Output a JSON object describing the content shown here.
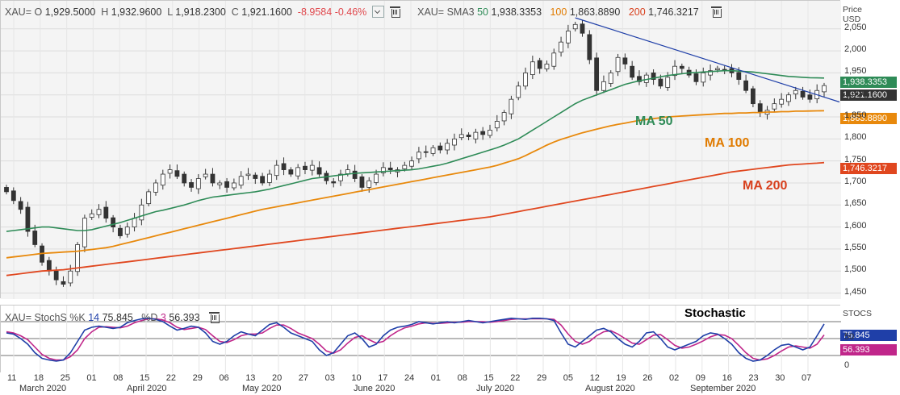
{
  "header": {
    "symbol": "XAU=",
    "open_label": "O",
    "open": "1,929.5000",
    "high_label": "H",
    "high": "1,932.9600",
    "low_label": "L",
    "low": "1,918.2300",
    "close_label": "C",
    "close": "1,921.1600",
    "change": "-8.9584",
    "change_pct": "-0.46%",
    "sma_label": "XAU= SMA3",
    "sma50_period": "50",
    "sma50_value": "1,938.3353",
    "sma100_period": "100",
    "sma100_value": "1,863.8890",
    "sma200_period": "200",
    "sma200_value": "1,746.3217"
  },
  "stoch_header": {
    "label": "XAU= StochS %K",
    "k_period": "14",
    "k_value": "75.845",
    "d_label": "%D",
    "d_period": "3",
    "d_value": "56.393"
  },
  "price_axis_title": [
    "Price",
    "USD"
  ],
  "stoch_axis_title": "STOCS",
  "annotations": {
    "ma50": "MA 50",
    "ma100": "MA 100",
    "ma200": "MA 200",
    "stochastic": "Stochastic"
  },
  "price_tags": {
    "ma50": "1,938.3353",
    "close": "1,921.1600",
    "ma100": "1,863.8890",
    "ma200": "1,746.3217",
    "k": "75.845",
    "d": "56.393"
  },
  "colors": {
    "ma50": "#2e8b57",
    "ma100": "#e8890c",
    "ma200": "#e0471f",
    "k_line": "#1f3fa8",
    "d_line": "#c0268a",
    "trendline": "#1f3fa8",
    "close_tag": "#333333"
  },
  "chart_data": {
    "type": "candlestick",
    "y_ticks": [
      "1,450",
      "1,500",
      "1,550",
      "1,600",
      "1,650",
      "1,700",
      "1,750",
      "1,800",
      "1,850",
      "1,900",
      "1,950",
      "2,000",
      "2,050"
    ],
    "y_tick_values": [
      1450,
      1500,
      1550,
      1600,
      1650,
      1700,
      1750,
      1800,
      1850,
      1900,
      1950,
      2000,
      2050
    ],
    "ylim": [
      1440,
      2110
    ],
    "x_ticks": [
      "11",
      "18",
      "25",
      "01",
      "08",
      "15",
      "22",
      "29",
      "06",
      "13",
      "20",
      "27",
      "03",
      "10",
      "17",
      "24",
      "01",
      "08",
      "15",
      "22",
      "29",
      "05",
      "12",
      "19",
      "26",
      "02",
      "09",
      "16",
      "23",
      "30",
      "07"
    ],
    "months": [
      "March 2020",
      "April 2020",
      "May 2020",
      "June 2020",
      "July 2020",
      "August 2020",
      "September 2020"
    ],
    "close_series": [
      1680,
      1660,
      1640,
      1590,
      1560,
      1520,
      1500,
      1480,
      1470,
      1500,
      1560,
      1620,
      1630,
      1640,
      1620,
      1600,
      1580,
      1600,
      1620,
      1650,
      1680,
      1700,
      1720,
      1730,
      1715,
      1700,
      1690,
      1710,
      1720,
      1700,
      1700,
      1690,
      1700,
      1715,
      1720,
      1710,
      1700,
      1720,
      1740,
      1730,
      1720,
      1735,
      1730,
      1740,
      1720,
      1705,
      1700,
      1720,
      1730,
      1710,
      1690,
      1705,
      1720,
      1735,
      1730,
      1730,
      1740,
      1750,
      1770,
      1770,
      1780,
      1775,
      1790,
      1800,
      1810,
      1805,
      1815,
      1810,
      1820,
      1840,
      1860,
      1890,
      1920,
      1950,
      1975,
      1960,
      1970,
      1995,
      2020,
      2045,
      2060,
      2040,
      1980,
      1910,
      1930,
      1950,
      1985,
      1970,
      1940,
      1930,
      1945,
      1935,
      1920,
      1940,
      1965,
      1960,
      1945,
      1930,
      1950,
      1955,
      1960,
      1955,
      1950,
      1935,
      1910,
      1880,
      1860,
      1865,
      1880,
      1890,
      1900,
      1910,
      1895,
      1890,
      1910,
      1921.16
    ],
    "ma50": [
      1590,
      1592,
      1594,
      1596,
      1598,
      1600,
      1600,
      1598,
      1596,
      1594,
      1592,
      1592,
      1594,
      1598,
      1602,
      1606,
      1610,
      1615,
      1620,
      1625,
      1630,
      1635,
      1638,
      1642,
      1646,
      1650,
      1655,
      1660,
      1664,
      1668,
      1670,
      1672,
      1674,
      1676,
      1678,
      1680,
      1683,
      1686,
      1690,
      1694,
      1698,
      1702,
      1706,
      1710,
      1712,
      1714,
      1716,
      1718,
      1720,
      1722,
      1723,
      1724,
      1725,
      1726,
      1727,
      1728,
      1729,
      1730,
      1732,
      1735,
      1738,
      1741,
      1745,
      1750,
      1755,
      1760,
      1765,
      1770,
      1775,
      1780,
      1786,
      1793,
      1800,
      1810,
      1820,
      1830,
      1840,
      1850,
      1860,
      1870,
      1880,
      1888,
      1894,
      1900,
      1906,
      1912,
      1918,
      1924,
      1928,
      1932,
      1935,
      1938,
      1941,
      1944,
      1946,
      1948,
      1950,
      1951,
      1952,
      1953,
      1954,
      1955,
      1955,
      1954,
      1953,
      1952,
      1950,
      1948,
      1946,
      1944,
      1942,
      1941,
      1940,
      1939,
      1938.6,
      1938.34
    ],
    "ma100": [
      1530,
      1532,
      1534,
      1536,
      1538,
      1540,
      1541,
      1542,
      1543,
      1544,
      1545,
      1547,
      1549,
      1551,
      1553,
      1556,
      1560,
      1564,
      1568,
      1572,
      1576,
      1580,
      1584,
      1588,
      1592,
      1596,
      1600,
      1604,
      1608,
      1612,
      1616,
      1620,
      1624,
      1628,
      1632,
      1636,
      1640,
      1643,
      1646,
      1649,
      1652,
      1655,
      1658,
      1661,
      1664,
      1667,
      1670,
      1673,
      1676,
      1679,
      1682,
      1685,
      1688,
      1691,
      1694,
      1697,
      1700,
      1703,
      1706,
      1709,
      1712,
      1715,
      1718,
      1721,
      1724,
      1727,
      1730,
      1733,
      1736,
      1740,
      1745,
      1750,
      1755,
      1762,
      1770,
      1778,
      1786,
      1793,
      1799,
      1804,
      1809,
      1814,
      1818,
      1822,
      1826,
      1830,
      1833,
      1836,
      1839,
      1842,
      1844,
      1846,
      1848,
      1850,
      1851,
      1852,
      1853,
      1854,
      1855,
      1856,
      1857,
      1858,
      1858,
      1859,
      1859,
      1860,
      1860,
      1861,
      1861,
      1862,
      1862,
      1863,
      1863,
      1863.5,
      1863.8,
      1863.89
    ],
    "ma200": [
      1490,
      1492,
      1494,
      1496,
      1498,
      1500,
      1501,
      1502,
      1503,
      1505,
      1507,
      1509,
      1511,
      1513,
      1515,
      1517,
      1519,
      1521,
      1523,
      1525,
      1527,
      1529,
      1531,
      1533,
      1535,
      1537,
      1539,
      1541,
      1543,
      1545,
      1547,
      1549,
      1551,
      1553,
      1555,
      1557,
      1559,
      1561,
      1563,
      1565,
      1567,
      1569,
      1571,
      1573,
      1575,
      1577,
      1579,
      1581,
      1583,
      1585,
      1587,
      1589,
      1591,
      1593,
      1595,
      1597,
      1599,
      1601,
      1603,
      1605,
      1607,
      1609,
      1611,
      1613,
      1615,
      1617,
      1619,
      1621,
      1623,
      1626,
      1629,
      1632,
      1635,
      1638,
      1641,
      1644,
      1647,
      1650,
      1653,
      1656,
      1659,
      1662,
      1665,
      1668,
      1671,
      1674,
      1677,
      1680,
      1683,
      1686,
      1689,
      1692,
      1695,
      1698,
      1701,
      1704,
      1707,
      1710,
      1713,
      1716,
      1719,
      1722,
      1725,
      1727,
      1729,
      1731,
      1733,
      1735,
      1737,
      1739,
      1741,
      1742,
      1743,
      1744,
      1745,
      1746.32
    ],
    "stoch_k": [
      60,
      58,
      50,
      40,
      25,
      15,
      12,
      10,
      12,
      25,
      45,
      65,
      70,
      72,
      70,
      68,
      70,
      78,
      82,
      85,
      86,
      84,
      80,
      72,
      65,
      68,
      72,
      70,
      60,
      45,
      40,
      45,
      55,
      62,
      58,
      55,
      65,
      75,
      78,
      70,
      60,
      55,
      50,
      45,
      30,
      20,
      25,
      40,
      55,
      60,
      50,
      35,
      40,
      55,
      65,
      70,
      72,
      75,
      80,
      78,
      76,
      78,
      80,
      78,
      80,
      82,
      80,
      78,
      80,
      82,
      84,
      86,
      85,
      84,
      86,
      86,
      85,
      82,
      60,
      40,
      35,
      45,
      55,
      65,
      68,
      62,
      50,
      40,
      35,
      45,
      60,
      62,
      50,
      35,
      30,
      35,
      40,
      45,
      55,
      60,
      58,
      50,
      40,
      25,
      15,
      10,
      12,
      20,
      30,
      38,
      40,
      35,
      30,
      35,
      55,
      75.845
    ],
    "stoch_d": [
      62,
      60,
      55,
      48,
      35,
      22,
      15,
      12,
      12,
      18,
      30,
      50,
      62,
      70,
      71,
      70,
      69,
      72,
      78,
      82,
      85,
      85,
      83,
      78,
      70,
      66,
      68,
      70,
      66,
      55,
      45,
      43,
      48,
      55,
      58,
      58,
      60,
      68,
      74,
      74,
      68,
      60,
      55,
      50,
      40,
      28,
      24,
      30,
      42,
      52,
      55,
      48,
      42,
      45,
      55,
      63,
      69,
      72,
      76,
      78,
      77,
      77,
      78,
      79,
      79,
      80,
      80,
      80,
      79,
      80,
      82,
      84,
      85,
      85,
      85,
      85,
      85,
      84,
      74,
      58,
      45,
      40,
      45,
      55,
      62,
      64,
      58,
      50,
      42,
      40,
      48,
      56,
      57,
      48,
      38,
      33,
      35,
      40,
      46,
      53,
      57,
      56,
      50,
      38,
      25,
      15,
      12,
      14,
      20,
      28,
      35,
      37,
      35,
      33,
      40,
      56.393
    ],
    "stoch_ylim": [
      0,
      100
    ],
    "stoch_ticks": [
      "0",
      "50"
    ],
    "trendline": {
      "from": [
        80,
        2075
      ],
      "to": [
        115,
        1895
      ]
    }
  }
}
